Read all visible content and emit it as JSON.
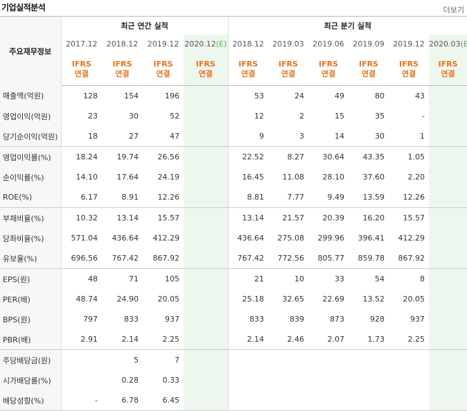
{
  "title": "기업실적분석",
  "more_label": "더보기",
  "header": {
    "main_label": "주요재무정보",
    "annual_label": "최근 연간 실적",
    "quarter_label": "최근 분기 실적",
    "annual_periods": [
      "2017.12",
      "2018.12",
      "2019.12",
      "2020.12"
    ],
    "annual_est_suffix": "(E)",
    "quarter_periods": [
      "2018.12",
      "2019.03",
      "2019.06",
      "2019.09",
      "2019.12",
      "2020.03"
    ],
    "quarter_est_suffix": "(E)",
    "ifrs_top": "IFRS",
    "ifrs_bottom": "연결"
  },
  "rows": [
    {
      "label": "매출액(억원)",
      "values": [
        "128",
        "154",
        "196",
        "",
        "53",
        "24",
        "49",
        "80",
        "43",
        ""
      ]
    },
    {
      "label": "영업이익(억원)",
      "values": [
        "23",
        "30",
        "52",
        "",
        "12",
        "2",
        "15",
        "35",
        "-",
        ""
      ]
    },
    {
      "label": "당기순이익(억원)",
      "values": [
        "18",
        "27",
        "47",
        "",
        "9",
        "3",
        "14",
        "30",
        "1",
        ""
      ]
    },
    {
      "label": "영업이익률(%)",
      "values": [
        "18.24",
        "19.74",
        "26.56",
        "",
        "22.52",
        "8.27",
        "30.64",
        "43.35",
        "1.05",
        ""
      ]
    },
    {
      "label": "순이익률(%)",
      "values": [
        "14.10",
        "17.64",
        "24.19",
        "",
        "16.45",
        "11.08",
        "28.10",
        "37.60",
        "2.20",
        ""
      ]
    },
    {
      "label": "ROE(%)",
      "values": [
        "6.17",
        "8.91",
        "12.26",
        "",
        "8.81",
        "7.77",
        "9.49",
        "13.59",
        "12.26",
        ""
      ]
    },
    {
      "label": "부채비율(%)",
      "values": [
        "10.32",
        "13.14",
        "15.57",
        "",
        "13.14",
        "21.57",
        "20.39",
        "16.20",
        "15.57",
        ""
      ]
    },
    {
      "label": "당좌비율(%)",
      "values": [
        "571.04",
        "436.64",
        "412.29",
        "",
        "436.64",
        "275.08",
        "299.96",
        "396.41",
        "412.29",
        ""
      ]
    },
    {
      "label": "유보율(%)",
      "values": [
        "696.56",
        "767.42",
        "867.92",
        "",
        "767.42",
        "772.56",
        "805.77",
        "859.78",
        "867.92",
        ""
      ]
    },
    {
      "label": "EPS(원)",
      "values": [
        "48",
        "71",
        "105",
        "",
        "21",
        "10",
        "33",
        "54",
        "8",
        ""
      ]
    },
    {
      "label": "PER(배)",
      "values": [
        "48.74",
        "24.90",
        "20.05",
        "",
        "25.18",
        "32.65",
        "22.69",
        "13.52",
        "20.05",
        ""
      ]
    },
    {
      "label": "BPS(원)",
      "values": [
        "797",
        "833",
        "937",
        "",
        "833",
        "839",
        "873",
        "928",
        "937",
        ""
      ]
    },
    {
      "label": "PBR(배)",
      "values": [
        "2.91",
        "2.14",
        "2.25",
        "",
        "2.14",
        "2.46",
        "2.07",
        "1.73",
        "2.25",
        ""
      ]
    },
    {
      "label": "주당배당금(원)",
      "values": [
        "",
        "5",
        "7",
        "",
        "",
        "",
        "",
        "",
        "",
        ""
      ]
    },
    {
      "label": "시가배당률(%)",
      "values": [
        "",
        "0.28",
        "0.33",
        "",
        "",
        "",
        "",
        "",
        "",
        ""
      ]
    },
    {
      "label": "배당성향(%)",
      "values": [
        "-",
        "6.78",
        "6.45",
        "",
        "",
        "",
        "",
        "",
        "",
        ""
      ]
    }
  ],
  "colors": {
    "accent": "#e8731b",
    "estimate_bg": "#eef7ee",
    "estimate_text": "#4caf50"
  }
}
